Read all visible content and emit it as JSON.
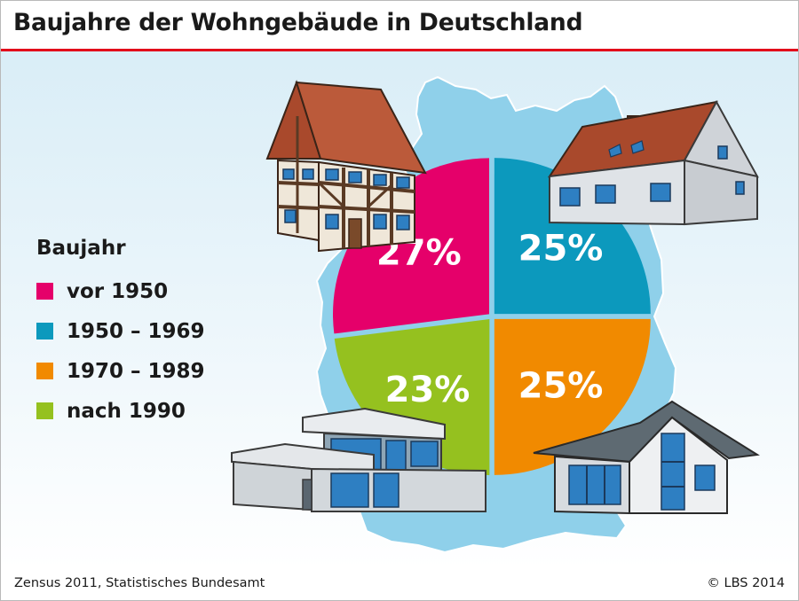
{
  "title": "Baujahre der Wohngebäude in Deutschland",
  "legend": {
    "title": "Baujahr",
    "items": [
      {
        "label": "vor 1950",
        "color": "#e5006a"
      },
      {
        "label": "1950 – 1969",
        "color": "#0c99bd"
      },
      {
        "label": "1970 – 1989",
        "color": "#f18a00"
      },
      {
        "label": "nach 1990",
        "color": "#95c11f"
      }
    ]
  },
  "chart_data": {
    "type": "pie",
    "labels": [
      "vor 1950",
      "1950 – 1969",
      "1970 – 1989",
      "nach 1990"
    ],
    "values": [
      27,
      25,
      25,
      23
    ],
    "value_labels": [
      "27%",
      "25%",
      "25%",
      "23%"
    ],
    "colors": [
      "#e5006a",
      "#0c99bd",
      "#f18a00",
      "#95c11f"
    ],
    "legend_position": "left"
  },
  "footer": {
    "source": "Zensus 2011, Statistisches Bundesamt",
    "copyright": "© LBS 2014"
  },
  "icons": [
    "germany-map-icon",
    "half-timbered-house-icon",
    "gable-house-icon",
    "modern-cube-house-icon",
    "modern-gable-house-icon"
  ]
}
